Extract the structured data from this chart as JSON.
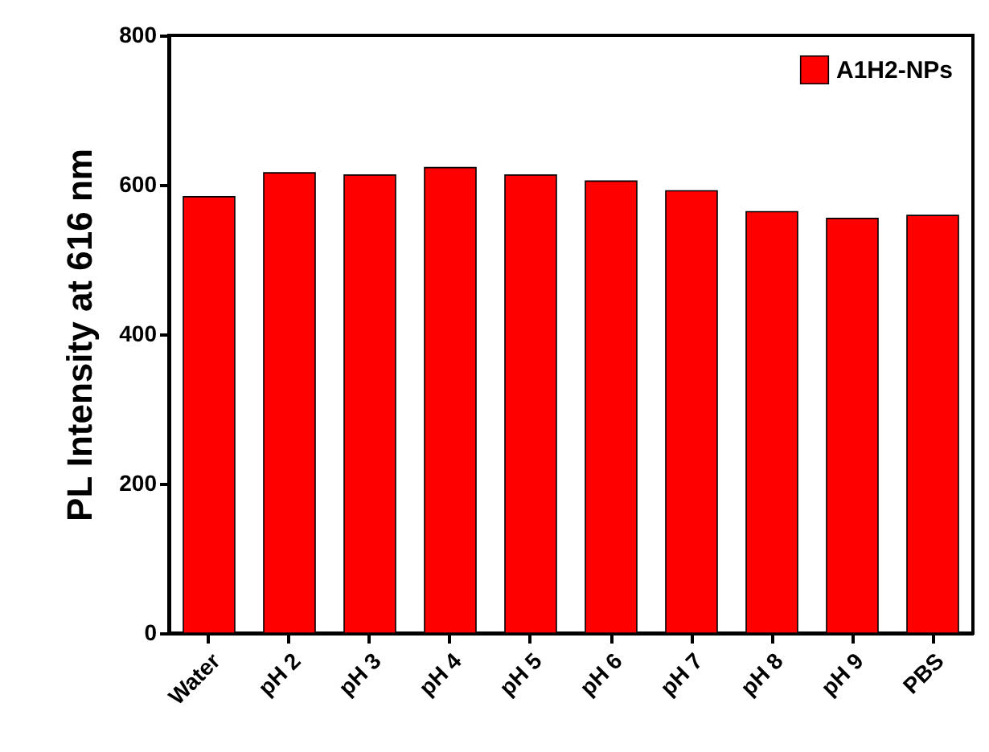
{
  "chart_data": {
    "type": "bar",
    "ylabel": "PL Intensity at 616 nm",
    "categories": [
      "Water",
      "pH 2",
      "pH 3",
      "pH 4",
      "pH 5",
      "pH 6",
      "pH 7",
      "pH 8",
      "pH 9",
      "PBS"
    ],
    "series": [
      {
        "name": "A1H2-NPs",
        "color": "#ff0000",
        "values": [
          584,
          616,
          613,
          623,
          613,
          605,
          592,
          564,
          555,
          559
        ]
      }
    ],
    "ylim": [
      0,
      800
    ],
    "yticks": [
      0,
      200,
      400,
      600,
      800
    ],
    "grid": false,
    "legend": "top right"
  }
}
